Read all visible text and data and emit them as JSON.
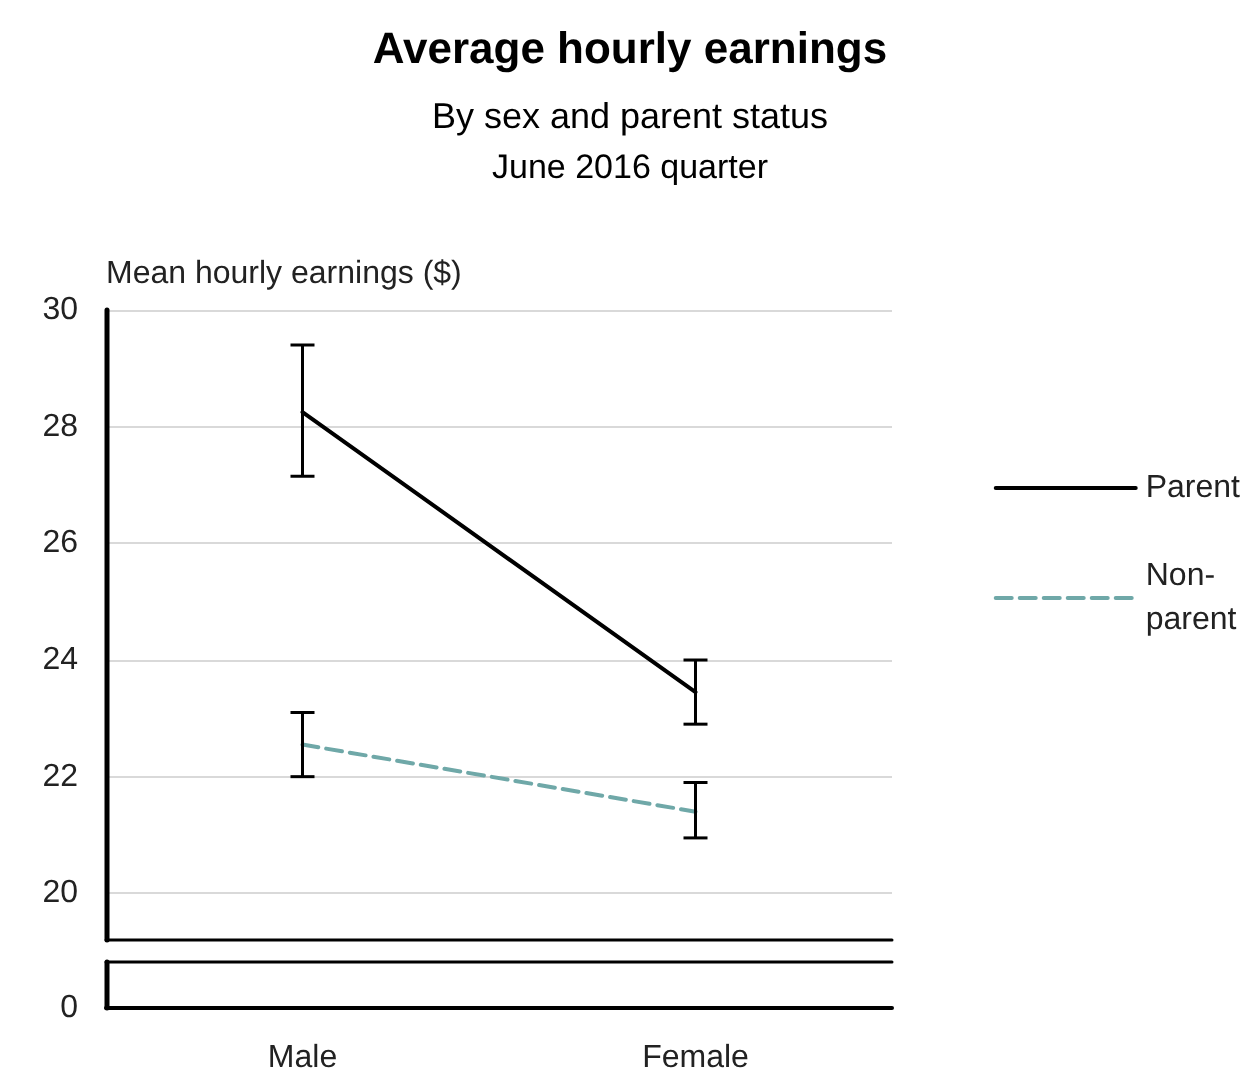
{
  "chart_data": [
    {
      "type": "line",
      "title": "Average hourly earnings",
      "subtitle": "By sex and parent status",
      "annotations": [
        "June 2016 quarter"
      ],
      "ylabel": "Mean hourly earnings ($)",
      "categories": [
        "Male",
        "Female"
      ],
      "series": [
        {
          "name": "Parent",
          "color": "#000000",
          "line_style": "solid",
          "values": [
            28.25,
            23.45
          ],
          "errors": [
            [
              27.15,
              29.4
            ],
            [
              22.9,
              24.0
            ]
          ]
        },
        {
          "name": "Non-parent",
          "color": "#6fa8a8",
          "line_style": "dashed",
          "values": [
            22.55,
            21.4
          ],
          "errors": [
            [
              22.0,
              23.1
            ],
            [
              20.95,
              21.9
            ]
          ]
        }
      ],
      "ylim": [
        19.2,
        30
      ],
      "yticks": [
        20,
        22,
        24,
        26,
        28,
        30
      ],
      "grid": "y",
      "legend": "right",
      "marker": "none"
    },
    {
      "type": "other",
      "annotations": [
        "0"
      ]
    }
  ]
}
